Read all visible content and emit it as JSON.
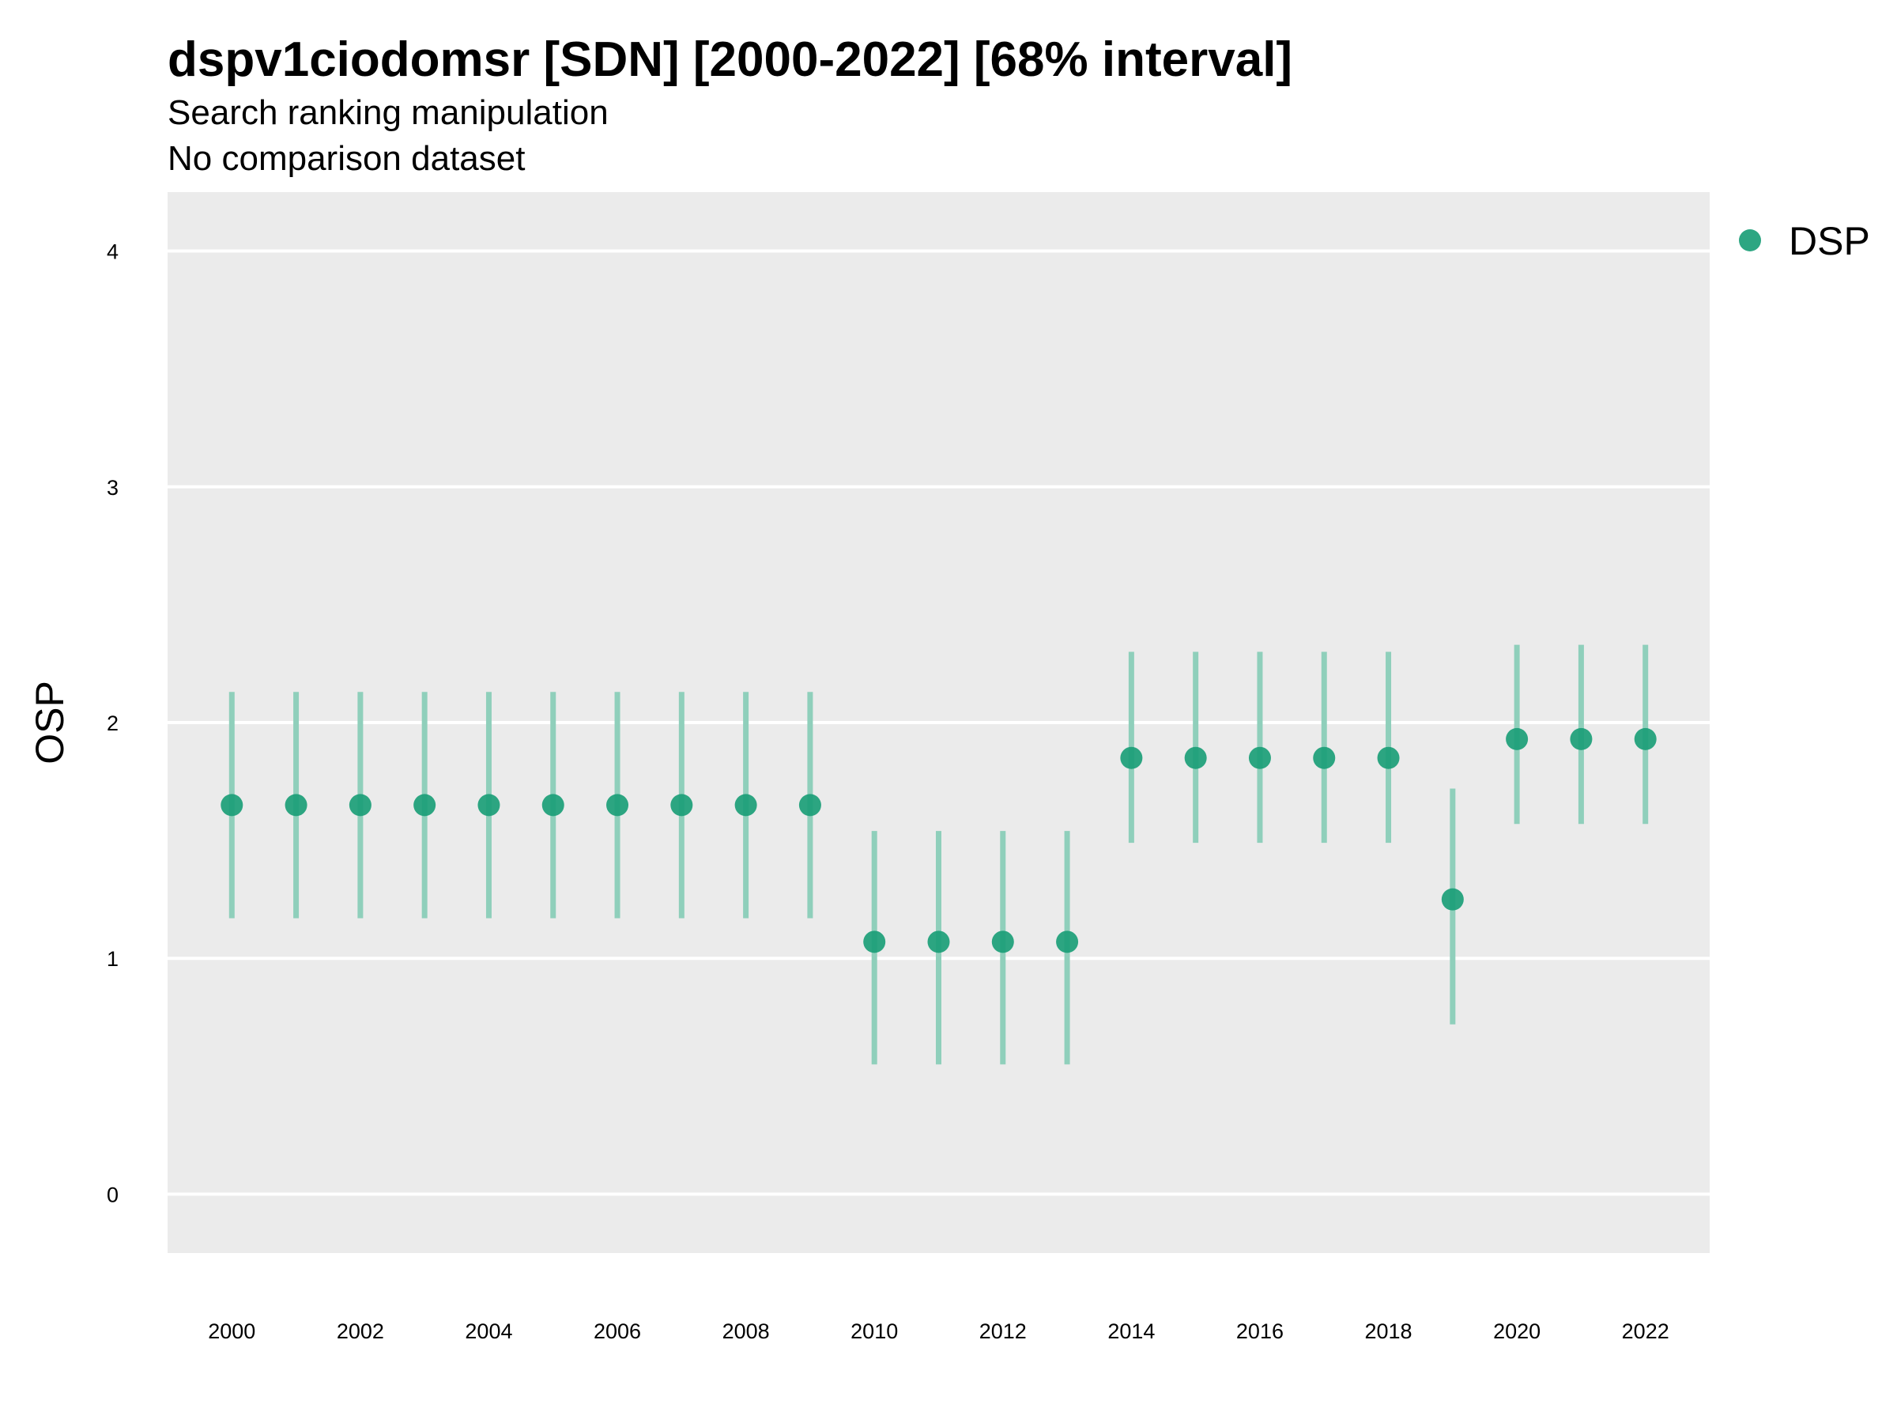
{
  "chart_data": {
    "type": "scatter",
    "title": "dspv1ciodomsr [SDN] [2000-2022] [68% interval]",
    "subtitle": "Search ranking manipulation",
    "caption_line": "No comparison dataset",
    "xlabel": "",
    "ylabel": "OSP",
    "ylim": [
      -0.25,
      4.25
    ],
    "xlim": [
      1999,
      2023
    ],
    "y_ticks": [
      "0",
      "1",
      "2",
      "3",
      "4"
    ],
    "x_ticks": [
      "2000",
      "2002",
      "2004",
      "2006",
      "2008",
      "2010",
      "2012",
      "2014",
      "2016",
      "2018",
      "2020",
      "2022"
    ],
    "grid": true,
    "legend_position": "right",
    "series": [
      {
        "name": "DSP",
        "color": "#1b9e77",
        "points": [
          {
            "x": 2000,
            "y": 1.65,
            "lo": 1.17,
            "hi": 2.13
          },
          {
            "x": 2001,
            "y": 1.65,
            "lo": 1.17,
            "hi": 2.13
          },
          {
            "x": 2002,
            "y": 1.65,
            "lo": 1.17,
            "hi": 2.13
          },
          {
            "x": 2003,
            "y": 1.65,
            "lo": 1.17,
            "hi": 2.13
          },
          {
            "x": 2004,
            "y": 1.65,
            "lo": 1.17,
            "hi": 2.13
          },
          {
            "x": 2005,
            "y": 1.65,
            "lo": 1.17,
            "hi": 2.13
          },
          {
            "x": 2006,
            "y": 1.65,
            "lo": 1.17,
            "hi": 2.13
          },
          {
            "x": 2007,
            "y": 1.65,
            "lo": 1.17,
            "hi": 2.13
          },
          {
            "x": 2008,
            "y": 1.65,
            "lo": 1.17,
            "hi": 2.13
          },
          {
            "x": 2009,
            "y": 1.65,
            "lo": 1.17,
            "hi": 2.13
          },
          {
            "x": 2010,
            "y": 1.07,
            "lo": 0.55,
            "hi": 1.54
          },
          {
            "x": 2011,
            "y": 1.07,
            "lo": 0.55,
            "hi": 1.54
          },
          {
            "x": 2012,
            "y": 1.07,
            "lo": 0.55,
            "hi": 1.54
          },
          {
            "x": 2013,
            "y": 1.07,
            "lo": 0.55,
            "hi": 1.54
          },
          {
            "x": 2014,
            "y": 1.85,
            "lo": 1.49,
            "hi": 2.3
          },
          {
            "x": 2015,
            "y": 1.85,
            "lo": 1.49,
            "hi": 2.3
          },
          {
            "x": 2016,
            "y": 1.85,
            "lo": 1.49,
            "hi": 2.3
          },
          {
            "x": 2017,
            "y": 1.85,
            "lo": 1.49,
            "hi": 2.3
          },
          {
            "x": 2018,
            "y": 1.85,
            "lo": 1.49,
            "hi": 2.3
          },
          {
            "x": 2019,
            "y": 1.25,
            "lo": 0.72,
            "hi": 1.72
          },
          {
            "x": 2020,
            "y": 1.93,
            "lo": 1.57,
            "hi": 2.33
          },
          {
            "x": 2021,
            "y": 1.93,
            "lo": 1.57,
            "hi": 2.33
          },
          {
            "x": 2022,
            "y": 1.93,
            "lo": 1.57,
            "hi": 2.33
          }
        ]
      }
    ]
  },
  "colors": {
    "panel_background": "#ebebeb",
    "grid": "#ffffff",
    "point": "#1b9e77",
    "interval": "#8fcfbb"
  }
}
